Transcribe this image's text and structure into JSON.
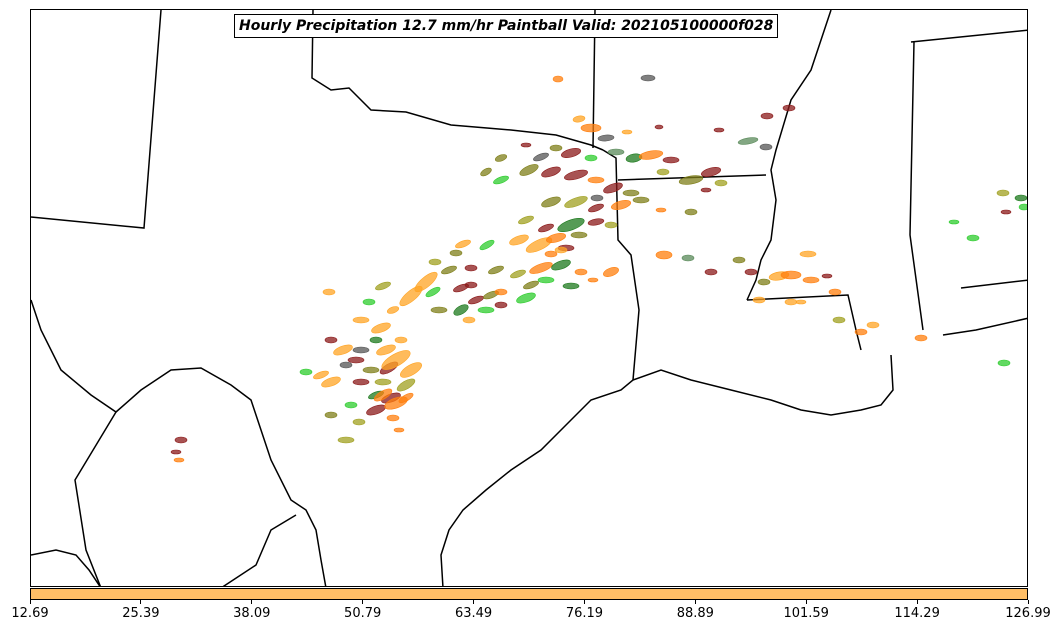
{
  "title": "Hourly Precipitation 12.7 mm/hr Paintball Valid: 202105100000f028",
  "colorbar": {
    "color": "#ffbe66",
    "ticks": [
      "12.69",
      "25.39",
      "38.09",
      "50.79",
      "63.49",
      "76.19",
      "88.89",
      "101.59",
      "114.29",
      "126.99"
    ]
  },
  "member_colors": [
    "#ff1a1a",
    "#ff7f0e",
    "#ffa424",
    "#2ecc2e",
    "#1e7a1e",
    "#8b1a1a",
    "#7f7f1a",
    "#a0a020",
    "#555555",
    "#5a8a5a"
  ]
}
